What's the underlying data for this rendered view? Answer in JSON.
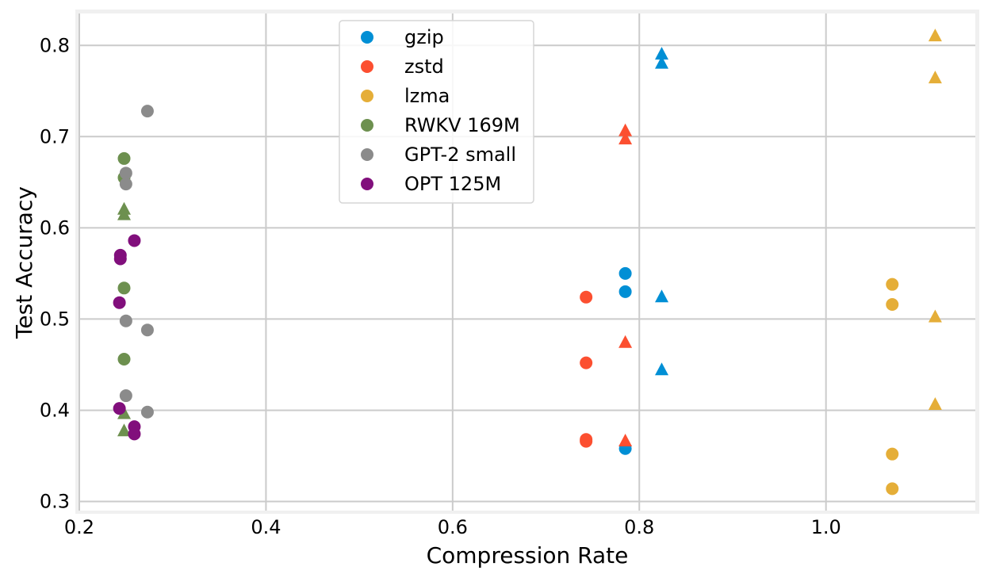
{
  "chart_data": {
    "type": "scatter",
    "xlabel": "Compression Rate",
    "ylabel": "Test Accuracy",
    "xlim": [
      0.2,
      1.16
    ],
    "ylim": [
      0.29,
      0.835
    ],
    "x_ticks": [
      "0.2",
      "0.4",
      "0.6",
      "0.8",
      "1.0"
    ],
    "y_ticks": [
      "0.3",
      "0.4",
      "0.5",
      "0.6",
      "0.7",
      "0.8"
    ],
    "grid": true,
    "legend_position": "top-center",
    "marker_shapes": [
      "circle",
      "triangle"
    ],
    "series": [
      {
        "name": "gzip",
        "color": "#008fd5",
        "points": [
          {
            "x": 0.785,
            "y": 0.55,
            "marker": "circle"
          },
          {
            "x": 0.785,
            "y": 0.53,
            "marker": "circle"
          },
          {
            "x": 0.785,
            "y": 0.358,
            "marker": "circle"
          },
          {
            "x": 0.824,
            "y": 0.79,
            "marker": "triangle"
          },
          {
            "x": 0.824,
            "y": 0.78,
            "marker": "triangle"
          },
          {
            "x": 0.824,
            "y": 0.524,
            "marker": "triangle"
          },
          {
            "x": 0.824,
            "y": 0.444,
            "marker": "triangle"
          }
        ]
      },
      {
        "name": "zstd",
        "color": "#fc4f30",
        "points": [
          {
            "x": 0.743,
            "y": 0.524,
            "marker": "circle"
          },
          {
            "x": 0.743,
            "y": 0.452,
            "marker": "circle"
          },
          {
            "x": 0.743,
            "y": 0.368,
            "marker": "circle"
          },
          {
            "x": 0.743,
            "y": 0.366,
            "marker": "circle"
          },
          {
            "x": 0.785,
            "y": 0.706,
            "marker": "triangle"
          },
          {
            "x": 0.785,
            "y": 0.697,
            "marker": "triangle"
          },
          {
            "x": 0.785,
            "y": 0.474,
            "marker": "triangle"
          },
          {
            "x": 0.785,
            "y": 0.366,
            "marker": "triangle"
          }
        ]
      },
      {
        "name": "lzma",
        "color": "#e5ae38",
        "points": [
          {
            "x": 1.071,
            "y": 0.538,
            "marker": "circle"
          },
          {
            "x": 1.071,
            "y": 0.516,
            "marker": "circle"
          },
          {
            "x": 1.071,
            "y": 0.352,
            "marker": "circle"
          },
          {
            "x": 1.071,
            "y": 0.314,
            "marker": "circle"
          },
          {
            "x": 1.117,
            "y": 0.81,
            "marker": "triangle"
          },
          {
            "x": 1.117,
            "y": 0.764,
            "marker": "triangle"
          },
          {
            "x": 1.117,
            "y": 0.502,
            "marker": "triangle"
          },
          {
            "x": 1.117,
            "y": 0.406,
            "marker": "triangle"
          }
        ]
      },
      {
        "name": "RWKV 169M",
        "color": "#6d904f",
        "points": [
          {
            "x": 0.248,
            "y": 0.676,
            "marker": "circle"
          },
          {
            "x": 0.248,
            "y": 0.655,
            "marker": "circle"
          },
          {
            "x": 0.248,
            "y": 0.534,
            "marker": "circle"
          },
          {
            "x": 0.248,
            "y": 0.456,
            "marker": "circle"
          },
          {
            "x": 0.248,
            "y": 0.62,
            "marker": "triangle"
          },
          {
            "x": 0.248,
            "y": 0.614,
            "marker": "triangle"
          },
          {
            "x": 0.248,
            "y": 0.396,
            "marker": "triangle"
          },
          {
            "x": 0.248,
            "y": 0.377,
            "marker": "triangle"
          }
        ]
      },
      {
        "name": "GPT-2 small",
        "color": "#8b8b8b",
        "points": [
          {
            "x": 0.273,
            "y": 0.728,
            "marker": "circle"
          },
          {
            "x": 0.25,
            "y": 0.66,
            "marker": "circle"
          },
          {
            "x": 0.25,
            "y": 0.648,
            "marker": "circle"
          },
          {
            "x": 0.25,
            "y": 0.498,
            "marker": "circle"
          },
          {
            "x": 0.273,
            "y": 0.488,
            "marker": "circle"
          },
          {
            "x": 0.25,
            "y": 0.416,
            "marker": "circle"
          },
          {
            "x": 0.273,
            "y": 0.398,
            "marker": "circle"
          }
        ]
      },
      {
        "name": "OPT 125M",
        "color": "#810f7c",
        "points": [
          {
            "x": 0.259,
            "y": 0.586,
            "marker": "circle"
          },
          {
            "x": 0.244,
            "y": 0.57,
            "marker": "circle"
          },
          {
            "x": 0.244,
            "y": 0.566,
            "marker": "circle"
          },
          {
            "x": 0.243,
            "y": 0.518,
            "marker": "circle"
          },
          {
            "x": 0.243,
            "y": 0.402,
            "marker": "circle"
          },
          {
            "x": 0.259,
            "y": 0.382,
            "marker": "circle"
          },
          {
            "x": 0.259,
            "y": 0.374,
            "marker": "circle"
          }
        ]
      }
    ]
  }
}
